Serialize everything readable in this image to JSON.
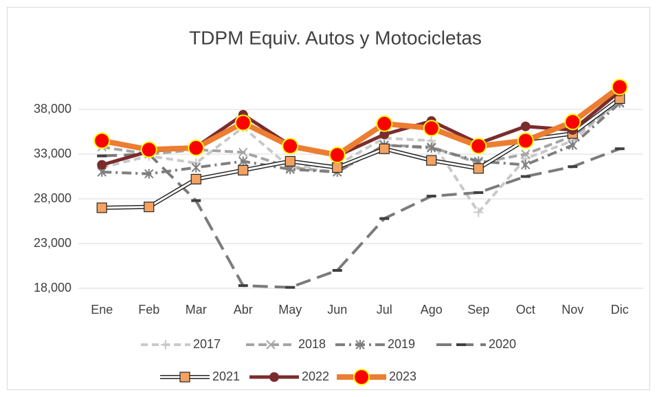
{
  "chart_data": {
    "type": "line",
    "title": "TDPM Equiv. Autos y Motocicletas",
    "categories": [
      "Ene",
      "Feb",
      "Mar",
      "Abr",
      "May",
      "Jun",
      "Jul",
      "Ago",
      "Sep",
      "Oct",
      "Nov",
      "Dic"
    ],
    "ylim": [
      18000,
      43000
    ],
    "yticks": [
      {
        "value": 18000,
        "label": "18,000"
      },
      {
        "value": 23000,
        "label": "23,000"
      },
      {
        "value": 28000,
        "label": "28,000"
      },
      {
        "value": 33000,
        "label": "33,000"
      },
      {
        "value": 38000,
        "label": "38,000"
      }
    ],
    "grid": true,
    "legend": "bottom",
    "series": [
      {
        "name": "2017",
        "color": "#c9c9c9",
        "dash": "10 6",
        "width": 4,
        "marker": "plus",
        "marker_color": "#c9c9c9",
        "values": [
          31500,
          32800,
          32000,
          36000,
          31500,
          31800,
          34800,
          34500,
          26500,
          32500,
          34500,
          39000
        ]
      },
      {
        "name": "2018",
        "color": "#a5a5a5",
        "dash": "12 6",
        "width": 4,
        "marker": "x",
        "marker_color": "#a5a5a5",
        "values": [
          33800,
          33000,
          33500,
          33200,
          31500,
          31000,
          34000,
          33800,
          32000,
          33000,
          35000,
          38800
        ]
      },
      {
        "name": "2019",
        "color": "#7f7f7f",
        "dash": "14 6 3 6",
        "width": 4,
        "marker": "star",
        "marker_color": "#7f7f7f",
        "values": [
          31000,
          30800,
          31500,
          32200,
          31300,
          31000,
          34000,
          33700,
          32200,
          31800,
          34000,
          38700
        ]
      },
      {
        "name": "2020",
        "color": "#7b7b7b",
        "dash": "22 10",
        "width": 4,
        "marker": "dash",
        "marker_color": "#404040",
        "values": [
          32800,
          33000,
          27800,
          18300,
          18100,
          20000,
          25800,
          28300,
          28700,
          30500,
          31600,
          33600
        ]
      },
      {
        "name": "2021",
        "color": "#ffffff",
        "outline": "#262626",
        "width": 3,
        "marker": "square",
        "marker_color": "#f4a261",
        "values": [
          27000,
          27100,
          30200,
          31200,
          32200,
          31500,
          33600,
          32300,
          31400,
          34600,
          35300,
          39200
        ]
      },
      {
        "name": "2022",
        "color": "#7b2c2c",
        "width": 5,
        "marker": "circle",
        "marker_color": "#7b2c2c",
        "values": [
          31800,
          33300,
          33800,
          37400,
          34000,
          32800,
          35200,
          36700,
          34200,
          36100,
          35700,
          40000
        ]
      },
      {
        "name": "2023",
        "color": "#ed7d31",
        "width": 8,
        "marker": "big-circle",
        "marker_color": "#ff0000",
        "marker_edge": "#ffff00",
        "values": [
          34500,
          33500,
          33700,
          36500,
          33900,
          32900,
          36400,
          35900,
          33900,
          34500,
          36600,
          40500
        ]
      }
    ]
  }
}
